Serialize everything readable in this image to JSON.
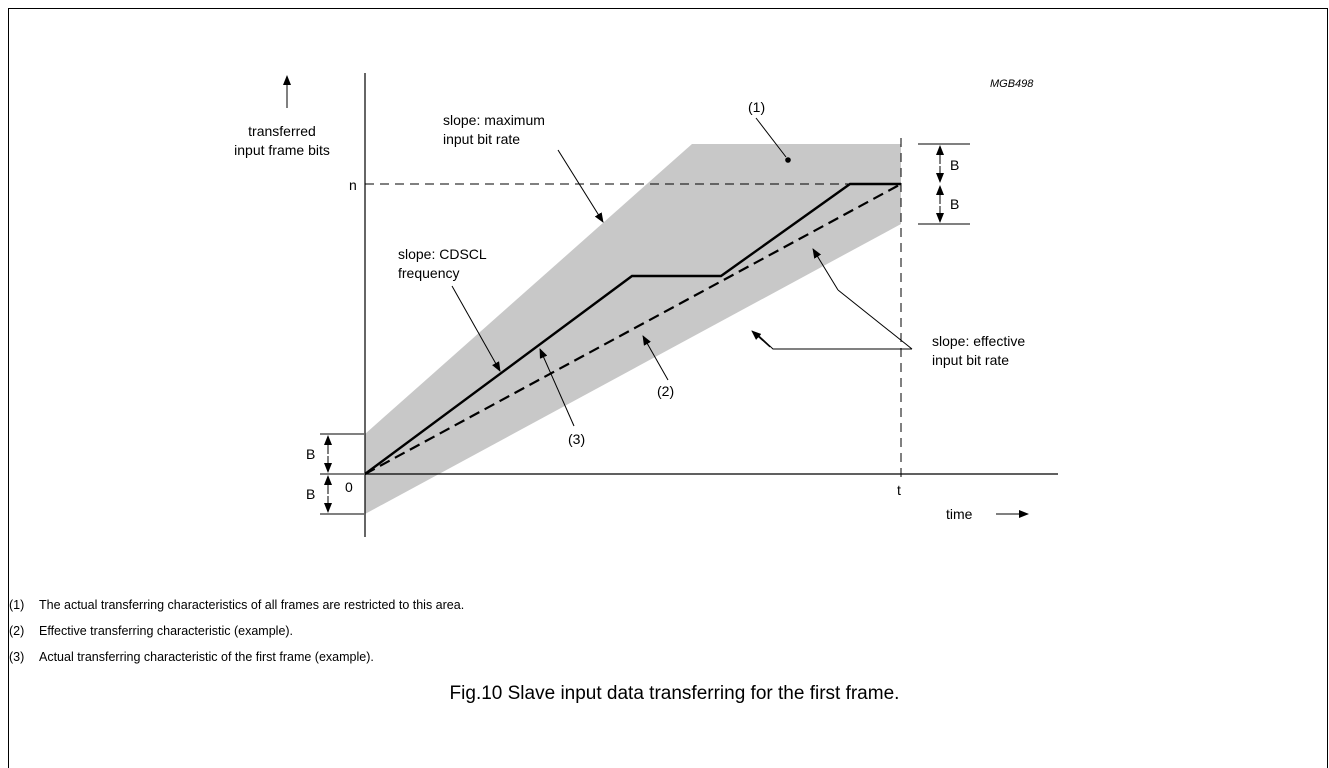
{
  "figure_code": "MGB498",
  "axes": {
    "y_label_line1": "transferred",
    "y_label_line2": "input frame bits",
    "x_label": "time",
    "origin_label": "0",
    "n_label": "n",
    "t_label": "t"
  },
  "tolerance_label": "B",
  "annotations": {
    "region_marker": "(1)",
    "effective_marker": "(2)",
    "actual_marker": "(3)",
    "max_rate_line1": "slope: maximum",
    "max_rate_line2": "input bit rate",
    "cdscl_line1": "slope: CDSCL",
    "cdscl_line2": "frequency",
    "effective_rate_line1": "slope: effective",
    "effective_rate_line2": "input bit rate"
  },
  "notes": [
    {
      "num": "(1)",
      "text": "The actual transferring characteristics of all frames are restricted to this area."
    },
    {
      "num": "(2)",
      "text": "Effective transferring characteristic (example)."
    },
    {
      "num": "(3)",
      "text": "Actual transferring characteristic of the first frame (example)."
    }
  ],
  "caption": "Fig.10  Slave input data transferring for the first frame.",
  "colors": {
    "region_fill": "#c8c8c8",
    "line": "#000000"
  }
}
